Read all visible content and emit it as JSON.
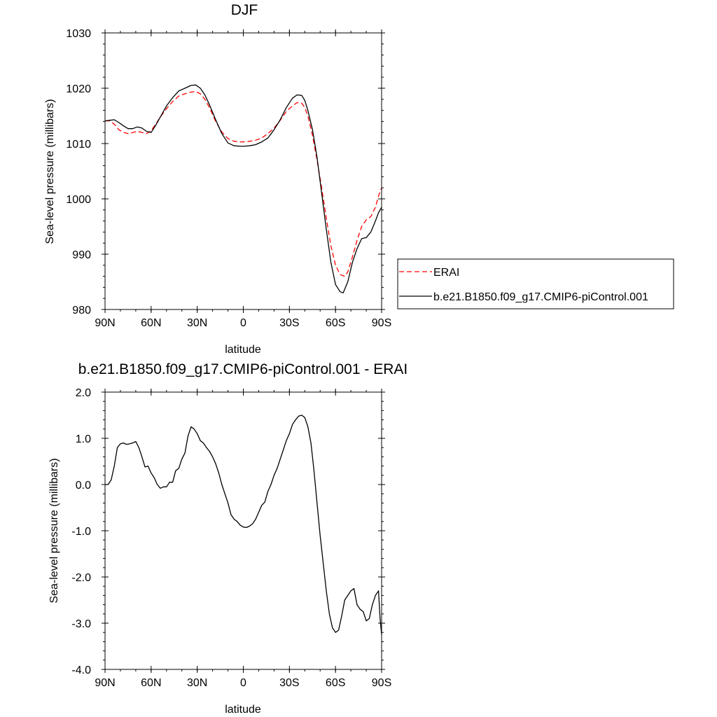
{
  "chart_data": [
    {
      "type": "line",
      "title": "DJF",
      "xlabel": "latitude",
      "ylabel": "Sea-level pressure (millibars)",
      "xlim": [
        90,
        -90
      ],
      "ylim": [
        980,
        1030
      ],
      "xticks": [
        90,
        60,
        30,
        0,
        -30,
        -60,
        -90
      ],
      "xtick_labels": [
        "90N",
        "60N",
        "30N",
        "0",
        "30S",
        "60S",
        "90S"
      ],
      "yticks": [
        980,
        990,
        1000,
        1010,
        1020,
        1030
      ],
      "ytick_labels": [
        "980",
        "990",
        "1000",
        "1010",
        "1020",
        "1030"
      ],
      "grid": false,
      "legend": "right",
      "series": [
        {
          "name": "ERAI",
          "color": "#ff0000",
          "dashed": true,
          "x": [
            90,
            87,
            84,
            81,
            78,
            75,
            72,
            69,
            66,
            63,
            60,
            57,
            54,
            50,
            46,
            42,
            38,
            34,
            31,
            28,
            25,
            22,
            18,
            14,
            10,
            6,
            2,
            0,
            -4,
            -8,
            -12,
            -16,
            -20,
            -24,
            -28,
            -32,
            -35,
            -38,
            -40,
            -42,
            -45,
            -48,
            -51,
            -54,
            -57,
            -60,
            -63,
            -66,
            -68,
            -71,
            -74,
            -77,
            -80,
            -83,
            -86,
            -88,
            -90
          ],
          "values": [
            1014.1,
            1014.1,
            1013.5,
            1012.5,
            1012.0,
            1011.8,
            1012.0,
            1012.2,
            1012.0,
            1011.8,
            1012.3,
            1013.5,
            1014.8,
            1016.3,
            1017.6,
            1018.6,
            1019.0,
            1019.3,
            1019.4,
            1019.0,
            1018.0,
            1016.5,
            1014.0,
            1012.1,
            1010.9,
            1010.4,
            1010.3,
            1010.3,
            1010.4,
            1010.6,
            1011.0,
            1011.8,
            1012.8,
            1014.2,
            1015.8,
            1016.8,
            1017.4,
            1017.3,
            1016.5,
            1015.0,
            1011.5,
            1007.0,
            1002.0,
            996.5,
            991.5,
            988.0,
            986.3,
            986.0,
            986.8,
            989.5,
            992.5,
            995.0,
            996.2,
            996.8,
            998.5,
            1000.5,
            1002.0
          ]
        },
        {
          "name": "b.e21.B1850.f09_g17.CMIP6-piControl.001",
          "color": "#000000",
          "dashed": false,
          "x": [
            90,
            87,
            84,
            81,
            78,
            75,
            72,
            69,
            66,
            63,
            60,
            57,
            54,
            50,
            46,
            42,
            38,
            34,
            31,
            28,
            25,
            22,
            18,
            14,
            10,
            6,
            2,
            0,
            -4,
            -8,
            -12,
            -16,
            -20,
            -24,
            -28,
            -32,
            -35,
            -38,
            -40,
            -42,
            -45,
            -48,
            -51,
            -54,
            -57,
            -60,
            -63,
            -65,
            -68,
            -71,
            -74,
            -77,
            -80,
            -83,
            -86,
            -88,
            -90
          ],
          "values": [
            1014.1,
            1014.2,
            1014.3,
            1013.8,
            1013.2,
            1012.7,
            1012.7,
            1013.0,
            1012.8,
            1012.2,
            1012.0,
            1013.3,
            1014.8,
            1016.8,
            1018.3,
            1019.5,
            1020.0,
            1020.5,
            1020.6,
            1020.0,
            1018.8,
            1017.0,
            1014.3,
            1011.8,
            1010.1,
            1009.6,
            1009.5,
            1009.5,
            1009.6,
            1009.8,
            1010.3,
            1011.0,
            1012.5,
            1014.3,
            1016.5,
            1018.2,
            1018.8,
            1018.7,
            1017.8,
            1016.0,
            1012.5,
            1007.5,
            1001.0,
            994.5,
            988.5,
            984.5,
            983.2,
            983.0,
            985.0,
            988.5,
            991.0,
            992.8,
            993.0,
            994.0,
            996.0,
            997.5,
            998.5
          ]
        }
      ]
    },
    {
      "type": "line",
      "title": "b.e21.B1850.f09_g17.CMIP6-piControl.001 - ERAI",
      "xlabel": "latitude",
      "ylabel": "Sea-level pressure (millibars)",
      "xlim": [
        90,
        -90
      ],
      "ylim": [
        -4.0,
        2.0
      ],
      "xticks": [
        90,
        60,
        30,
        0,
        -30,
        -60,
        -90
      ],
      "xtick_labels": [
        "90N",
        "60N",
        "30N",
        "0",
        "30S",
        "60S",
        "90S"
      ],
      "yticks": [
        -4.0,
        -3.0,
        -2.0,
        -1.0,
        0.0,
        1.0,
        2.0
      ],
      "ytick_labels": [
        "-4.0",
        "-3.0",
        "-2.0",
        "-1.0",
        "0.0",
        "1.0",
        "2.0"
      ],
      "grid": false,
      "series": [
        {
          "color": "#000000",
          "dashed": false,
          "x": [
            90,
            88,
            86,
            84,
            82,
            80,
            78,
            76,
            74,
            72,
            70,
            68,
            66,
            64,
            62,
            60,
            58,
            56,
            54,
            52,
            50,
            48,
            46,
            44,
            42,
            40,
            38,
            36,
            34,
            32,
            30,
            28,
            26,
            24,
            22,
            20,
            18,
            16,
            14,
            12,
            10,
            8,
            6,
            4,
            2,
            0,
            -2,
            -4,
            -6,
            -8,
            -10,
            -12,
            -14,
            -16,
            -18,
            -20,
            -22,
            -24,
            -26,
            -28,
            -30,
            -32,
            -34,
            -36,
            -38,
            -40,
            -42,
            -44,
            -46,
            -48,
            -50,
            -52,
            -54,
            -56,
            -58,
            -60,
            -62,
            -64,
            -66,
            -68,
            -70,
            -72,
            -74,
            -76,
            -78,
            -80,
            -82,
            -84,
            -86,
            -88,
            -89,
            -90
          ],
          "values": [
            0.0,
            0.0,
            0.1,
            0.4,
            0.8,
            0.88,
            0.9,
            0.87,
            0.88,
            0.9,
            0.93,
            0.8,
            0.6,
            0.38,
            0.4,
            0.25,
            0.15,
            0.0,
            -0.08,
            -0.05,
            -0.05,
            0.05,
            0.05,
            0.3,
            0.35,
            0.55,
            0.68,
            1.05,
            1.25,
            1.2,
            1.1,
            0.95,
            0.9,
            0.8,
            0.72,
            0.6,
            0.45,
            0.25,
            0.0,
            -0.2,
            -0.4,
            -0.65,
            -0.75,
            -0.8,
            -0.88,
            -0.92,
            -0.93,
            -0.9,
            -0.85,
            -0.75,
            -0.6,
            -0.45,
            -0.38,
            -0.15,
            0.0,
            0.2,
            0.35,
            0.55,
            0.75,
            0.95,
            1.1,
            1.3,
            1.4,
            1.48,
            1.5,
            1.45,
            1.25,
            0.9,
            0.3,
            -0.4,
            -1.1,
            -1.7,
            -2.3,
            -2.8,
            -3.1,
            -3.2,
            -3.15,
            -2.85,
            -2.5,
            -2.4,
            -2.3,
            -2.25,
            -2.6,
            -2.7,
            -2.75,
            -2.95,
            -2.9,
            -2.6,
            -2.4,
            -2.3,
            -2.9,
            -3.25
          ]
        }
      ]
    }
  ]
}
